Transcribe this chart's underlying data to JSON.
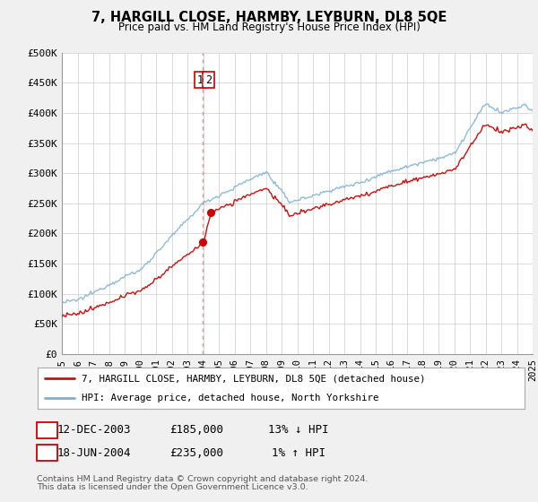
{
  "title": "7, HARGILL CLOSE, HARMBY, LEYBURN, DL8 5QE",
  "subtitle": "Price paid vs. HM Land Registry's House Price Index (HPI)",
  "ylim": [
    0,
    500000
  ],
  "xlim": [
    1995,
    2025
  ],
  "yticks": [
    0,
    50000,
    100000,
    150000,
    200000,
    250000,
    300000,
    350000,
    400000,
    450000,
    500000
  ],
  "ytick_labels": [
    "£0",
    "£50K",
    "£100K",
    "£150K",
    "£200K",
    "£250K",
    "£300K",
    "£350K",
    "£400K",
    "£450K",
    "£500K"
  ],
  "xticks": [
    1995,
    1996,
    1997,
    1998,
    1999,
    2000,
    2001,
    2002,
    2003,
    2004,
    2005,
    2006,
    2007,
    2008,
    2009,
    2010,
    2011,
    2012,
    2013,
    2014,
    2015,
    2016,
    2017,
    2018,
    2019,
    2020,
    2021,
    2022,
    2023,
    2024,
    2025
  ],
  "hpi_color": "#7bafd4",
  "price_color": "#cc1111",
  "dashed_line_color": "#e88080",
  "marker_color": "#cc0000",
  "transaction1_date": 2003.958,
  "transaction1_price": 185000,
  "transaction2_date": 2004.458,
  "transaction2_price": 235000,
  "transaction1_date_str": "12-DEC-2003",
  "transaction1_price_str": "£185,000",
  "transaction1_hpi_str": "13% ↓ HPI",
  "transaction2_date_str": "18-JUN-2004",
  "transaction2_price_str": "£235,000",
  "transaction2_hpi_str": "1% ↑ HPI",
  "legend1": "7, HARGILL CLOSE, HARMBY, LEYBURN, DL8 5QE (detached house)",
  "legend2": "HPI: Average price, detached house, North Yorkshire",
  "footnote1": "Contains HM Land Registry data © Crown copyright and database right 2024.",
  "footnote2": "This data is licensed under the Open Government Licence v3.0.",
  "background_color": "#f0f0f0",
  "plot_background": "#ffffff",
  "grid_color": "#cccccc",
  "border_color": "#cc0000"
}
